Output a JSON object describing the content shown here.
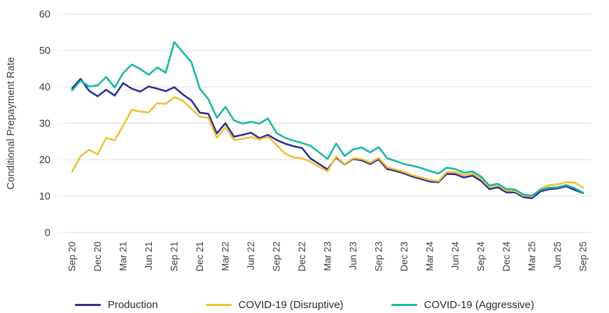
{
  "chart_data": {
    "type": "line",
    "title": "",
    "xlabel": "",
    "ylabel": "Conditional Prepayment Rate",
    "ylim": [
      0,
      60
    ],
    "y_ticks": [
      0,
      10,
      20,
      30,
      40,
      50,
      60
    ],
    "grid": "horizontal",
    "legend_position": "bottom",
    "x_tick_every": 3,
    "x": [
      "Sep 20",
      "Oct 20",
      "Nov 20",
      "Dec 20",
      "Jan 21",
      "Feb 21",
      "Mar 21",
      "Apr 21",
      "May 21",
      "Jun 21",
      "Jul 21",
      "Aug 21",
      "Sep 21",
      "Oct 21",
      "Nov 21",
      "Dec 21",
      "Jan 22",
      "Feb 22",
      "Mar 22",
      "Apr 22",
      "May 22",
      "Jun 22",
      "Jul 22",
      "Aug 22",
      "Sep 22",
      "Oct 22",
      "Nov 22",
      "Dec 22",
      "Jan 23",
      "Feb 23",
      "Mar 23",
      "Apr 23",
      "May 23",
      "Jun 23",
      "Jul 23",
      "Aug 23",
      "Sep 23",
      "Oct 23",
      "Nov 23",
      "Dec 23",
      "Jan 24",
      "Feb 24",
      "Mar 24",
      "Apr 24",
      "May 24",
      "Jun 24",
      "Jul 24",
      "Aug 24",
      "Sep 24",
      "Oct 24",
      "Nov 24",
      "Dec 24",
      "Jan 25",
      "Feb 25",
      "Mar 25",
      "Apr 25",
      "May 25",
      "Jun 25",
      "Jul 25",
      "Aug 25",
      "Sep 25"
    ],
    "series": [
      {
        "name": "Production",
        "color": "#2e3190",
        "values": [
          39.6,
          42.2,
          38.9,
          37.4,
          39.2,
          37.6,
          41.0,
          39.5,
          38.7,
          40.1,
          39.5,
          38.8,
          39.9,
          37.9,
          36.3,
          32.9,
          32.6,
          27.2,
          30.0,
          26.3,
          26.8,
          27.4,
          25.9,
          26.8,
          25.4,
          24.4,
          23.7,
          23.2,
          20.3,
          18.8,
          17.3,
          20.6,
          18.7,
          20.2,
          19.8,
          18.8,
          20.1,
          17.4,
          16.9,
          16.2,
          15.3,
          14.7,
          14.0,
          13.8,
          16.1,
          16.0,
          15.1,
          15.6,
          14.2,
          11.9,
          12.4,
          11.0,
          11.0,
          9.7,
          9.4,
          11.3,
          11.9,
          12.1,
          12.7,
          11.7,
          10.8
        ]
      },
      {
        "name": "COVID-19 (Disruptive)",
        "color": "#f0c137",
        "values": [
          16.7,
          21.0,
          22.7,
          21.5,
          26.0,
          25.3,
          29.3,
          33.7,
          33.2,
          33.0,
          35.5,
          35.3,
          37.2,
          36.2,
          34.0,
          31.8,
          31.5,
          26.0,
          28.9,
          25.4,
          25.7,
          26.2,
          25.5,
          26.3,
          24.0,
          21.7,
          20.6,
          20.4,
          19.4,
          18.0,
          16.8,
          20.9,
          18.8,
          20.4,
          20.2,
          19.2,
          20.5,
          17.9,
          17.3,
          16.6,
          15.7,
          15.1,
          14.4,
          14.1,
          16.6,
          16.6,
          15.7,
          16.2,
          14.8,
          12.5,
          13.0,
          11.5,
          11.4,
          10.1,
          9.9,
          12.0,
          13.0,
          13.2,
          13.8,
          13.7,
          12.3
        ]
      },
      {
        "name": "COVID-19 (Aggressive)",
        "color": "#19b8a5",
        "values": [
          39.0,
          41.7,
          40.1,
          40.4,
          42.7,
          39.8,
          43.8,
          46.1,
          44.9,
          43.3,
          45.3,
          43.9,
          52.3,
          49.5,
          46.8,
          39.5,
          36.6,
          31.5,
          34.5,
          30.8,
          29.9,
          30.4,
          29.9,
          31.3,
          27.3,
          26.0,
          25.2,
          24.6,
          23.8,
          22.0,
          20.2,
          24.4,
          21.0,
          22.8,
          23.3,
          22.0,
          23.4,
          20.4,
          19.6,
          18.8,
          18.3,
          17.7,
          16.9,
          16.2,
          17.8,
          17.4,
          16.4,
          16.8,
          15.4,
          12.9,
          13.4,
          11.9,
          11.8,
          10.4,
          10.1,
          11.7,
          12.3,
          12.4,
          13.0,
          12.2,
          10.9
        ]
      }
    ],
    "style": {
      "grid_color": "#dcdcdc",
      "axis_text_color": "#3d3d3d",
      "background": "#ffffff"
    }
  }
}
